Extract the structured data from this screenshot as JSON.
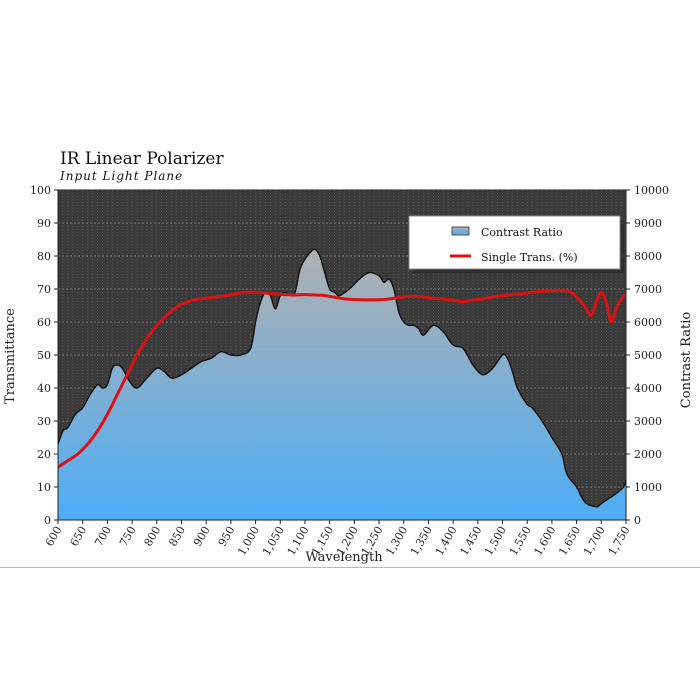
{
  "chart_data": {
    "type": "area",
    "title": "IR Linear Polarizer",
    "subtitle": "Input Light Plane",
    "xlabel": "Wavelength",
    "ylabel": "Transmittance",
    "y2label": "Contrast Ratio",
    "xlim": [
      600,
      1750
    ],
    "ylim": [
      0,
      100
    ],
    "y2lim": [
      0,
      10000
    ],
    "x_ticks": [
      600,
      650,
      700,
      750,
      800,
      850,
      900,
      950,
      1000,
      1050,
      1100,
      1150,
      1200,
      1250,
      1300,
      1350,
      1400,
      1450,
      1500,
      1550,
      1600,
      1650,
      1700,
      1750
    ],
    "x_tick_labels": [
      "600",
      "650",
      "700",
      "750",
      "800",
      "850",
      "900",
      "950",
      "1,000",
      "1,050",
      "1,100",
      "1,150",
      "1,200",
      "1,250",
      "1,300",
      "1,350",
      "1,400",
      "1,450",
      "1,500",
      "1,550",
      "1,600",
      "1,650",
      "1,700",
      "1,750"
    ],
    "y_ticks": [
      0,
      10,
      20,
      30,
      40,
      50,
      60,
      70,
      80,
      90,
      100
    ],
    "y2_ticks": [
      0,
      1000,
      2000,
      3000,
      4000,
      5000,
      6000,
      7000,
      8000,
      9000,
      10000
    ],
    "grid": true,
    "legend_position": "top-right",
    "series": [
      {
        "name": "Contrast Ratio",
        "axis": "right",
        "render": "area",
        "color_top": "#b0b0b0",
        "color_bottom": "#4eaef5",
        "x": [
          600,
          610,
          620,
          635,
          650,
          665,
          680,
          690,
          700,
          710,
          720,
          730,
          745,
          760,
          780,
          800,
          815,
          830,
          850,
          870,
          890,
          910,
          930,
          950,
          970,
          990,
          1000,
          1010,
          1020,
          1030,
          1040,
          1050,
          1060,
          1070,
          1080,
          1090,
          1100,
          1110,
          1120,
          1130,
          1140,
          1150,
          1160,
          1170,
          1190,
          1210,
          1230,
          1250,
          1260,
          1270,
          1280,
          1290,
          1300,
          1310,
          1320,
          1330,
          1340,
          1360,
          1380,
          1400,
          1420,
          1440,
          1460,
          1480,
          1500,
          1510,
          1520,
          1530,
          1550,
          1560,
          1580,
          1600,
          1620,
          1630,
          1650,
          1660,
          1670,
          1690,
          1700,
          1710,
          1720,
          1730,
          1745,
          1750
        ],
        "values": [
          2300,
          2700,
          2800,
          3200,
          3400,
          3800,
          4100,
          4000,
          4100,
          4600,
          4700,
          4600,
          4200,
          4000,
          4300,
          4600,
          4500,
          4300,
          4400,
          4600,
          4800,
          4900,
          5100,
          5000,
          5000,
          5200,
          6000,
          6600,
          6900,
          6800,
          6400,
          6800,
          6900,
          6800,
          6900,
          7600,
          7900,
          8100,
          8200,
          8000,
          7500,
          7000,
          6900,
          6800,
          7000,
          7300,
          7500,
          7400,
          7200,
          7300,
          7000,
          6300,
          6000,
          5900,
          5900,
          5800,
          5600,
          5900,
          5700,
          5300,
          5200,
          4700,
          4400,
          4600,
          5000,
          4900,
          4500,
          4000,
          3500,
          3400,
          3000,
          2500,
          2000,
          1400,
          1000,
          700,
          500,
          400,
          500,
          600,
          700,
          800,
          1000,
          1200
        ]
      },
      {
        "name": "Single Trans. (%)",
        "axis": "left",
        "render": "line",
        "color": "#dd1111",
        "x": [
          600,
          620,
          640,
          660,
          680,
          700,
          720,
          740,
          760,
          780,
          800,
          820,
          840,
          860,
          880,
          900,
          920,
          940,
          960,
          980,
          1000,
          1020,
          1040,
          1060,
          1080,
          1100,
          1120,
          1140,
          1160,
          1180,
          1200,
          1220,
          1240,
          1260,
          1280,
          1300,
          1320,
          1340,
          1360,
          1380,
          1400,
          1420,
          1440,
          1460,
          1480,
          1500,
          1520,
          1540,
          1560,
          1580,
          1600,
          1620,
          1640,
          1660,
          1670,
          1680,
          1690,
          1700,
          1710,
          1720,
          1730,
          1740,
          1750
        ],
        "values": [
          16,
          18,
          20,
          23,
          27,
          32,
          38,
          44,
          50,
          55,
          59,
          62,
          64.5,
          66,
          66.8,
          67.2,
          67.6,
          68,
          68.6,
          69,
          69,
          68.8,
          68.5,
          68.3,
          68.2,
          68.3,
          68.2,
          68,
          67.5,
          67,
          66.8,
          66.7,
          66.7,
          66.8,
          67.2,
          67.6,
          67.8,
          67.6,
          67.2,
          67,
          66.6,
          66.2,
          66.6,
          67,
          67.6,
          68,
          68.3,
          68.6,
          69,
          69.3,
          69.5,
          69.6,
          69,
          66,
          64,
          62,
          66,
          69,
          66,
          60,
          64,
          67,
          68.5
        ]
      }
    ]
  }
}
